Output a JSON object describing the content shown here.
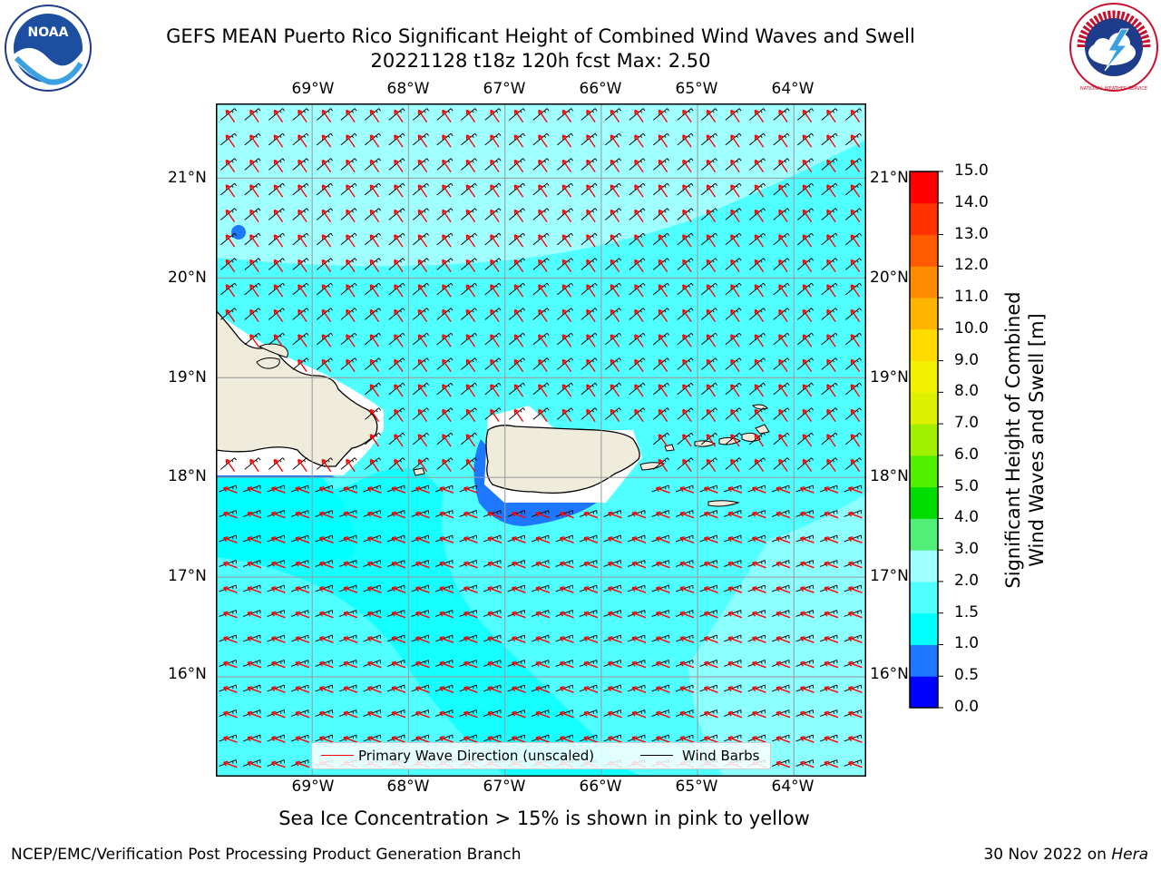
{
  "title": {
    "line1": "GEFS MEAN Puerto Rico Significant Height of Combined Wind Waves and Swell",
    "line2": "20221128 t18z 120h fcst   Max: 2.50"
  },
  "map": {
    "lon_labels": [
      "69°W",
      "68°W",
      "67°W",
      "66°W",
      "65°W",
      "64°W"
    ],
    "lat_labels": [
      "21°N",
      "20°N",
      "19°N",
      "18°N",
      "17°N",
      "16°N"
    ],
    "extent": {
      "lon_min": -70.0,
      "lon_max": -63.25,
      "lat_min": 15.0,
      "lat_max": 21.75
    },
    "colors": {
      "ocean_main": "#50ffff",
      "ocean_high": "#a0ffff",
      "ocean_low": "#00ffff",
      "band_1": "#1e78ff",
      "land": "#efecdc",
      "wave_arrow": "#ff0000",
      "wind_barb": "#000000"
    }
  },
  "legend": {
    "wave_label": "Primary Wave Direction (unscaled)",
    "barb_label": "Wind Barbs"
  },
  "colorbar": {
    "title_line1": "Significant Height of Combined",
    "title_line2": "Wind Waves and Swell [m]",
    "ticks": [
      "0.0",
      "0.5",
      "1.0",
      "1.5",
      "2.0",
      "3.0",
      "4.0",
      "5.0",
      "6.0",
      "7.0",
      "8.0",
      "9.0",
      "10.0",
      "11.0",
      "12.0",
      "13.0",
      "14.0",
      "15.0"
    ],
    "colors": [
      "#0000ff",
      "#1e78ff",
      "#00ffff",
      "#50ffff",
      "#a0ffff",
      "#50f078",
      "#00dc00",
      "#50f000",
      "#a0f000",
      "#dcf000",
      "#f0f000",
      "#ffdc00",
      "#ffb400",
      "#ff8c00",
      "#ff5a00",
      "#ff3200",
      "#ff0000"
    ]
  },
  "note": "Sea Ice Concentration > 15% is shown in pink to yellow",
  "footer": {
    "left": "NCEP/EMC/Verification Post Processing Product Generation Branch",
    "right_date": "30 Nov 2022 on",
    "right_host": "Hera"
  },
  "logos": {
    "noaa": "NOAA",
    "nws": "NATIONAL WEATHER SERVICE"
  }
}
